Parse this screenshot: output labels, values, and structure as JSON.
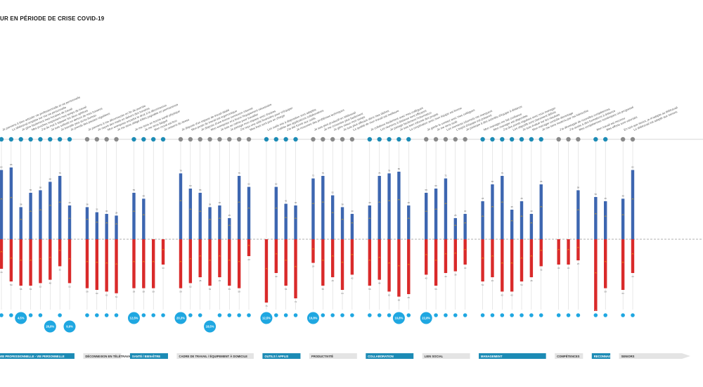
{
  "page": {
    "title": "UR EN PÉRIODE DE CRISE COVID-19"
  },
  "colors": {
    "positive": "#3d66b0",
    "negative": "#d92a2a",
    "bubble": "#1fa7e1",
    "category_bar": "#1c8bb5",
    "category_bar_alt": "#e4e4e4",
    "marker": "#f5b400",
    "icon_alt": "#8a8a8a"
  },
  "chart_data": {
    "type": "bar",
    "note_visible": "Diverging stacked bars per statement, grouped by theme; bubbles below show percentages",
    "ylim": [
      -100,
      100
    ],
    "categories_groups": [
      {
        "label": "VIE PROFESSIONNELLE - VIE PERSONNELLE",
        "start": 0,
        "end": 7
      },
      {
        "label": "DÉCONNEXION EN TÉLÉTRAVAIL",
        "start": 8,
        "end": 11
      },
      {
        "label": "SANTÉ / BIEN-ÊTRE",
        "start": 12,
        "end": 15
      },
      {
        "label": "CADRE DE TRAVAIL / ÉQUIPEMENT À DOMICILE",
        "start": 16,
        "end": 23
      },
      {
        "label": "OUTILS / APPLIS",
        "start": 24,
        "end": 27
      },
      {
        "label": "PRODUCTIVITÉ",
        "start": 28,
        "end": 32
      },
      {
        "label": "COLLABORATION",
        "start": 33,
        "end": 37
      },
      {
        "label": "LIEN SOCIAL",
        "start": 38,
        "end": 42
      },
      {
        "label": "MANAGEMENT",
        "start": 43,
        "end": 49
      },
      {
        "label": "COMPÉTENCES",
        "start": 50,
        "end": 52
      },
      {
        "label": "RECONNAISSANCE",
        "start": 53,
        "end": 54
      },
      {
        "label": "SENIORS",
        "start": 55,
        "end": 56
      }
    ],
    "statements": [
      {
        "text": "Je parviens à bien articuler vie professionnelle et vie personnelle",
        "pos": 82,
        "neg": 35,
        "bubble": "",
        "icon": "teal"
      },
      {
        "text": "Le télétravail empiète sur ma vie personnelle",
        "pos": 85,
        "neg": 50,
        "bubble": "",
        "icon": "teal"
      },
      {
        "text": "Je gère facilement mes horaires de travail",
        "pos": 38,
        "neg": 55,
        "bubble": "4,5%",
        "icon": "teal"
      },
      {
        "text": "Mes proches respectent mes temps de travail",
        "pos": 55,
        "neg": 55,
        "bubble": "",
        "icon": "teal"
      },
      {
        "text": "J'ai du mal à séparer les deux sphères",
        "pos": 58,
        "neg": 52,
        "bubble": "",
        "icon": "teal"
      },
      {
        "text": "Je suis sollicité en dehors de mes horaires",
        "pos": 68,
        "neg": 48,
        "bubble": "26,8%",
        "icon": "teal"
      },
      {
        "text": "Je travaille plus qu'au bureau",
        "pos": 75,
        "neg": 32,
        "bubble": "",
        "icon": "teal"
      },
      {
        "text": "Je prends des pauses régulières",
        "pos": 40,
        "neg": 52,
        "bubble": "9,9%",
        "icon": "teal"
      },
      {
        "text": "Je parviens à me déconnecter en fin de journée",
        "pos": 38,
        "neg": 58,
        "bubble": "",
        "icon": "grey"
      },
      {
        "text": "Je reçois des mails en dehors des horaires",
        "pos": 32,
        "neg": 60,
        "bubble": "",
        "icon": "grey"
      },
      {
        "text": "Mon entreprise encadre le droit à la déconnexion",
        "pos": 30,
        "neg": 62,
        "bubble": "",
        "icon": "grey"
      },
      {
        "text": "Je me sens obligé d'être joignable en permanence",
        "pos": 28,
        "neg": 64,
        "bubble": "",
        "icon": "grey"
      },
      {
        "text": "Je me sens en bonne santé physique",
        "pos": 55,
        "neg": 58,
        "bubble": "12,5%",
        "icon": "teal"
      },
      {
        "text": "Je me sens fatigué",
        "pos": 48,
        "neg": 58,
        "bubble": "",
        "icon": "teal"
      },
      {
        "text": "Mon moral est bon",
        "pos": 0,
        "neg": 58,
        "bubble": "",
        "icon": "teal"
      },
      {
        "text": "Je ressens du stress",
        "pos": 0,
        "neg": 30,
        "bubble": "",
        "icon": "teal"
      },
      {
        "text": "Je dispose d'un espace de travail dédié",
        "pos": 78,
        "neg": 58,
        "bubble": "20,3%",
        "icon": "grey"
      },
      {
        "text": "Mon poste de travail est ergonomique",
        "pos": 60,
        "neg": 52,
        "bubble": "",
        "icon": "grey"
      },
      {
        "text": "Je dispose d'une bonne connexion internet",
        "pos": 55,
        "neg": 45,
        "bubble": "",
        "icon": "grey"
      },
      {
        "text": "Mon entreprise m'a fourni l'équipement nécessaire",
        "pos": 38,
        "neg": 55,
        "bubble": "18,5%",
        "icon": "grey"
      },
      {
        "text": "Je suis au calme pour travailler",
        "pos": 40,
        "neg": 45,
        "bubble": "",
        "icon": "grey"
      },
      {
        "text": "Je partage mon espace avec d'autres",
        "pos": 25,
        "neg": 55,
        "bubble": "",
        "icon": "grey"
      },
      {
        "text": "J'ai reçu une aide financière pour m'équiper",
        "pos": 75,
        "neg": 58,
        "bubble": "",
        "icon": "grey"
      },
      {
        "text": "Mes frais sont pris en charge",
        "pos": 62,
        "neg": 20,
        "bubble": "",
        "icon": "grey"
      },
      {
        "text": "Les outils mis à disposition sont adaptés",
        "pos": 0,
        "neg": 75,
        "bubble": "12,5%",
        "icon": "teal"
      },
      {
        "text": "J'utilise des applications collaboratives",
        "pos": 62,
        "neg": 40,
        "bubble": "",
        "icon": "teal"
      },
      {
        "text": "J'ai été formé aux outils",
        "pos": 42,
        "neg": 55,
        "bubble": "",
        "icon": "teal"
      },
      {
        "text": "Je rencontre des problèmes techniques",
        "pos": 40,
        "neg": 70,
        "bubble": "",
        "icon": "teal"
      },
      {
        "text": "Je suis plus productif en télétravail",
        "pos": 72,
        "neg": 28,
        "bubble": "10,8%",
        "icon": "grey"
      },
      {
        "text": "Je me concentre plus facilement",
        "pos": 75,
        "neg": 55,
        "bubble": "",
        "icon": "grey"
      },
      {
        "text": "Je gère mieux mon temps",
        "pos": 52,
        "neg": 45,
        "bubble": "",
        "icon": "grey"
      },
      {
        "text": "Je suis plus efficace dans mes tâches",
        "pos": 38,
        "neg": 60,
        "bubble": "",
        "icon": "grey"
      },
      {
        "text": "La qualité de mon travail est meilleure",
        "pos": 30,
        "neg": 42,
        "bubble": "",
        "icon": "grey"
      },
      {
        "text": "Je collabore facilement avec mes collègues",
        "pos": 40,
        "neg": 55,
        "bubble": "",
        "icon": "teal"
      },
      {
        "text": "Les réunions à distance sont efficaces",
        "pos": 75,
        "neg": 48,
        "bubble": "",
        "icon": "teal"
      },
      {
        "text": "Je partage facilement l'information",
        "pos": 78,
        "neg": 62,
        "bubble": "",
        "icon": "teal"
      },
      {
        "text": "Je suis bien informé des projets",
        "pos": 80,
        "neg": 68,
        "bubble": "10,8%",
        "icon": "teal"
      },
      {
        "text": "La coopération avec mon équipe est bonne",
        "pos": 40,
        "neg": 65,
        "bubble": "",
        "icon": "teal"
      },
      {
        "text": "Je garde le contact avec mes collègues",
        "pos": 55,
        "neg": 42,
        "bubble": "22,8%",
        "icon": "grey"
      },
      {
        "text": "Je me sens isolé",
        "pos": 60,
        "neg": 55,
        "bubble": "",
        "icon": "grey"
      },
      {
        "text": "Les moments informels me manquent",
        "pos": 72,
        "neg": 40,
        "bubble": "",
        "icon": "grey"
      },
      {
        "text": "L'esprit d'équipe est préservé",
        "pos": 25,
        "neg": 38,
        "bubble": "",
        "icon": "grey"
      },
      {
        "text": "Je participe à des activités d'équipe à distance",
        "pos": 30,
        "neg": 30,
        "bubble": "",
        "icon": "grey"
      },
      {
        "text": "Mon manager me fait confiance",
        "pos": 45,
        "neg": 50,
        "bubble": "",
        "icon": "teal"
      },
      {
        "text": "Mon manager est disponible",
        "pos": 65,
        "neg": 45,
        "bubble": "",
        "icon": "teal"
      },
      {
        "text": "J'ai des points réguliers avec mon manager",
        "pos": 75,
        "neg": 62,
        "bubble": "",
        "icon": "teal"
      },
      {
        "text": "Les objectifs sont clairement définis",
        "pos": 35,
        "neg": 62,
        "bubble": "",
        "icon": "teal"
      },
      {
        "text": "Je suis évalué sur les résultats",
        "pos": 45,
        "neg": 50,
        "bubble": "",
        "icon": "teal"
      },
      {
        "text": "Mon manager contrôle davantage",
        "pos": 30,
        "neg": 45,
        "bubble": "",
        "icon": "teal"
      },
      {
        "text": "Je me sens soutenu par ma hiérarchie",
        "pos": 65,
        "neg": 32,
        "bubble": "",
        "icon": "teal"
      },
      {
        "text": "J'ai développé de nouvelles compétences",
        "pos": 0,
        "neg": 30,
        "bubble": "",
        "icon": "grey"
      },
      {
        "text": "J'ai accès à des formations à distance",
        "pos": 0,
        "neg": 30,
        "bubble": "",
        "icon": "grey"
      },
      {
        "text": "Mes compétences numériques ont progressé",
        "pos": 58,
        "neg": 25,
        "bubble": "",
        "icon": "grey"
      },
      {
        "text": "Mon travail est reconnu",
        "pos": 50,
        "neg": 85,
        "bubble": "",
        "icon": "teal"
      },
      {
        "text": "Mes efforts sont valorisés",
        "pos": 45,
        "neg": 58,
        "bubble": "",
        "icon": "teal"
      },
      {
        "text": "En tant que senior, je m'adapte au télétravail",
        "pos": 48,
        "neg": 60,
        "bubble": "",
        "icon": "grey"
      },
      {
        "text": "Le télétravail est adapté aux seniors",
        "pos": 82,
        "neg": 40,
        "bubble": "",
        "icon": "grey"
      }
    ]
  }
}
